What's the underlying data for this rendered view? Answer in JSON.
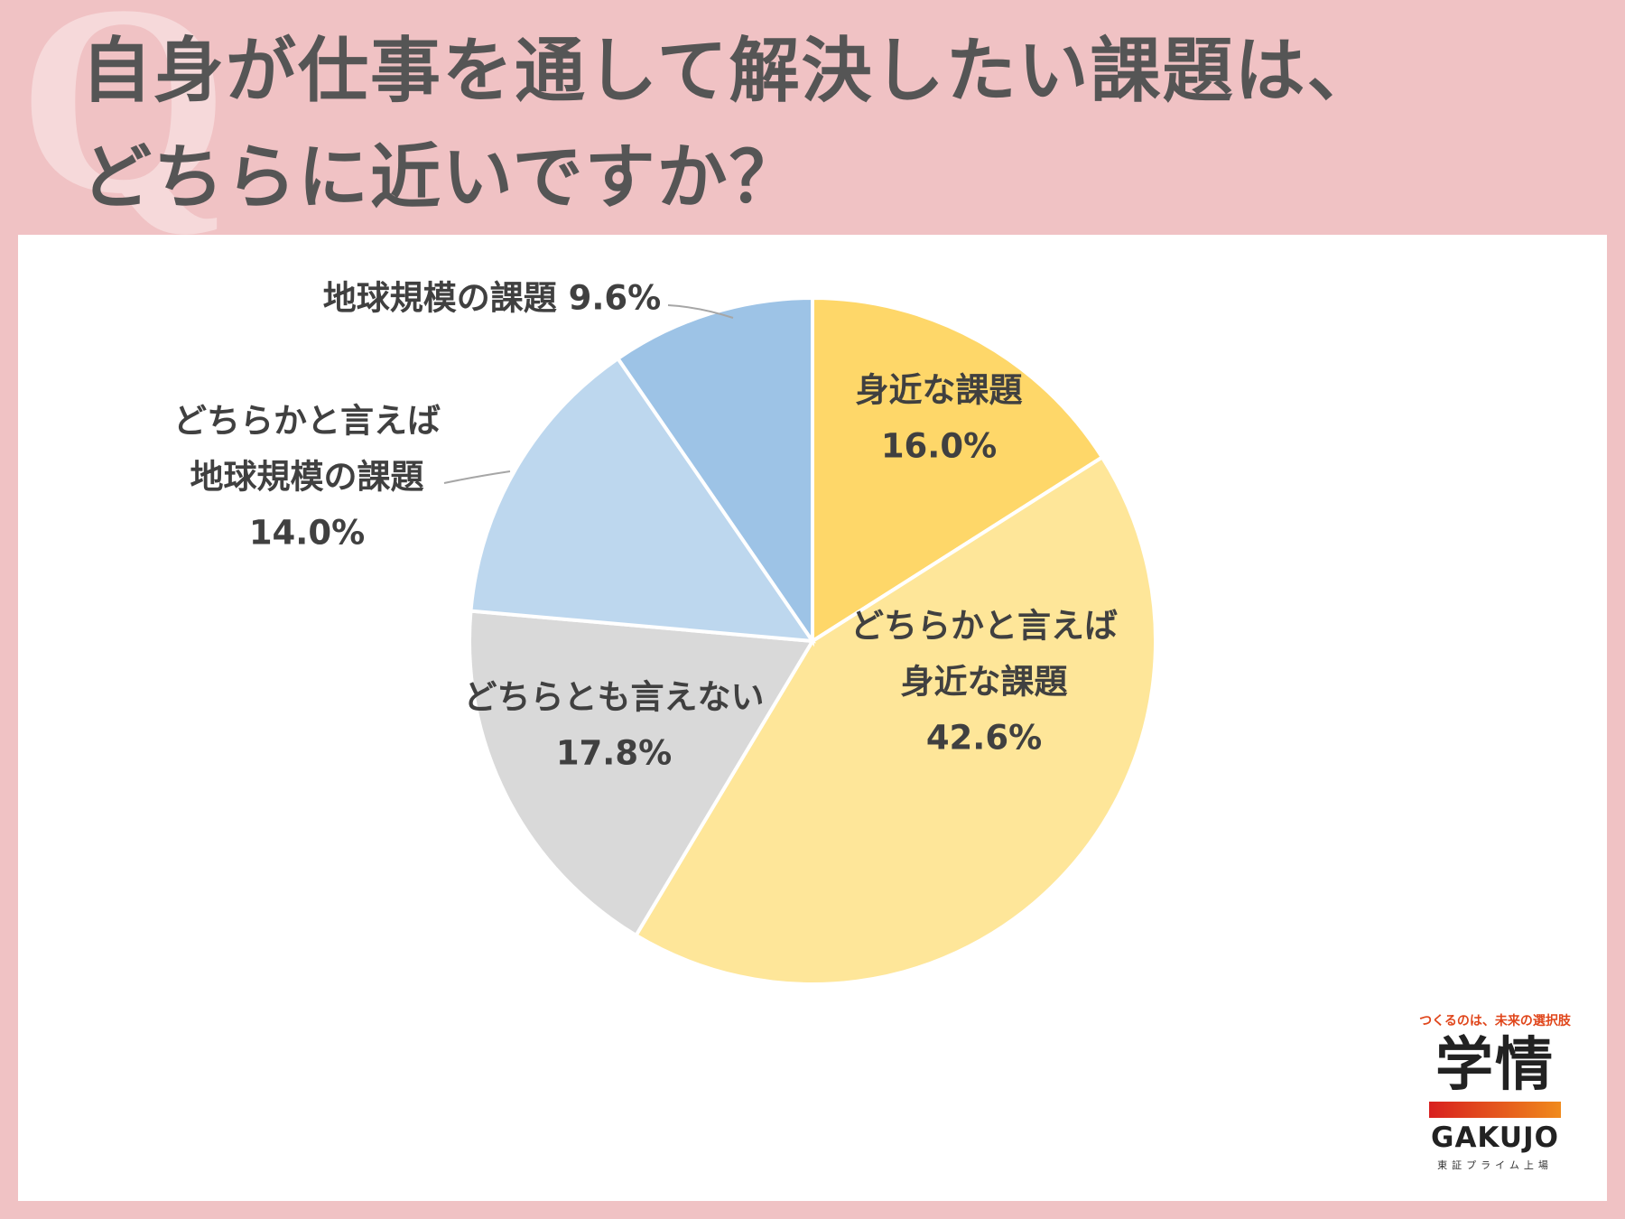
{
  "header": {
    "q_mark": "Q",
    "title_line1": "自身が仕事を通して解決したい課題は、",
    "title_line2": "どちらに近いですか？"
  },
  "chart_data": {
    "type": "pie",
    "title": "自身が仕事を通して解決したい課題は、どちらに近いですか？",
    "slices": [
      {
        "label": [
          "身近な課題"
        ],
        "value": 16.0,
        "value_text": "16.0%",
        "color": "#fed769"
      },
      {
        "label": [
          "どちらかと言えば",
          "身近な課題"
        ],
        "value": 42.6,
        "value_text": "42.6%",
        "color": "#fee699"
      },
      {
        "label": [
          "どちらとも言えない"
        ],
        "value": 17.8,
        "value_text": "17.8%",
        "color": "#d9d9d9"
      },
      {
        "label": [
          "どちらかと言えば",
          "地球規模の課題"
        ],
        "value": 14.0,
        "value_text": "14.0%",
        "color": "#bdd7ee"
      },
      {
        "label": [
          "地球規模の課題"
        ],
        "value": 9.6,
        "value_text": "9.6%",
        "color": "#9dc3e6"
      }
    ],
    "start_angle": "12 o'clock",
    "direction": "clockwise",
    "legend": "none"
  },
  "logo": {
    "tagline": "つくるのは、未来の選択肢",
    "brand_jp": "学情",
    "brand_en": "GAKUJO",
    "listing": "東証プライム上場"
  }
}
